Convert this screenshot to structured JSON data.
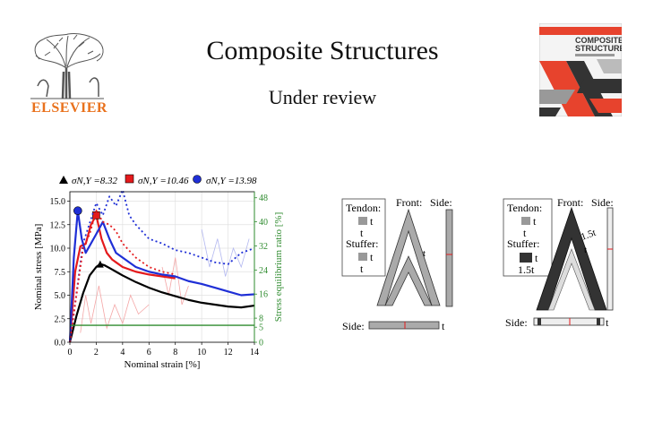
{
  "header": {
    "title": "Composite Structures",
    "subtitle": "Under review",
    "publisher_logo": "ELSEVIER",
    "journal_cover": {
      "line1": "COMPOSITE",
      "line2": "STRUCTURES"
    }
  },
  "colors": {
    "elsevier_orange": "#e9711c",
    "journal_red": "#e7432d",
    "series_black": "#000000",
    "series_red": "#e41a1c",
    "series_blue": "#1f2fd6",
    "equilibrium_green": "#2e8b2e"
  },
  "chart_data": {
    "type": "line",
    "xlabel": "Nominal strain [%]",
    "ylabel": "Nominal stress [MPa]",
    "y2label": "Stress equilibrium ratio [%]",
    "xlim": [
      0,
      14
    ],
    "ylim": [
      0,
      16
    ],
    "xticks": [
      "0",
      "2",
      "4",
      "6",
      "8",
      "10",
      "12",
      "14"
    ],
    "yticks": [
      "0.0",
      "2.5",
      "5.0",
      "7.5",
      "10.0",
      "12.5",
      "15.0"
    ],
    "y2ticks": [
      "0",
      "5",
      "8",
      "16",
      "24",
      "32",
      "40",
      "48"
    ],
    "grid": true,
    "legend_position": "top",
    "legend": [
      "σN,Y =8.32",
      "σN,Y =10.46",
      "σN,Y =13.98"
    ],
    "series": [
      {
        "name": "σN,Y =8.32",
        "color": "#000000",
        "marker": "triangle",
        "x": [
          0,
          0.5,
          1,
          1.5,
          2,
          2.3,
          2.6,
          3,
          3.5,
          4,
          5,
          6,
          7,
          8,
          9,
          10,
          11,
          12,
          13,
          14
        ],
        "y": [
          0,
          2.8,
          5.2,
          7.1,
          8.0,
          8.32,
          8.2,
          7.9,
          7.5,
          7.1,
          6.4,
          5.8,
          5.3,
          4.9,
          4.5,
          4.2,
          4.0,
          3.8,
          3.7,
          3.9
        ]
      },
      {
        "name": "σN,Y =10.46",
        "color": "#e41a1c",
        "marker": "square",
        "x": [
          0,
          0.4,
          0.8,
          1.2,
          1.6,
          2.0,
          2.4,
          2.8,
          3.2,
          3.6,
          4,
          5,
          6,
          7,
          8
        ],
        "y": [
          0,
          7.5,
          10.2,
          10.46,
          12.5,
          13.5,
          11.0,
          9.5,
          8.8,
          8.4,
          8.0,
          7.5,
          7.2,
          7.0,
          6.8
        ]
      },
      {
        "name": "σN,Y =13.98",
        "color": "#1f2fd6",
        "marker": "circle",
        "x": [
          0,
          0.3,
          0.6,
          0.9,
          1.2,
          1.6,
          2.0,
          2.5,
          3.0,
          3.5,
          4,
          5,
          6,
          7,
          8,
          9,
          10,
          11,
          12,
          13,
          14
        ],
        "y": [
          0,
          9.0,
          13.98,
          11.0,
          9.5,
          10.5,
          11.5,
          12.8,
          11.0,
          9.5,
          9.0,
          8.0,
          7.5,
          7.2,
          7.0,
          6.5,
          6.2,
          5.8,
          5.4,
          5.0,
          5.1
        ]
      },
      {
        "name": "",
        "color": "#1f2fd6",
        "style": "dotted",
        "x": [
          0,
          1,
          2,
          2.5,
          3,
          3.5,
          4,
          4.5,
          5,
          6,
          7,
          8,
          9,
          10,
          11,
          12,
          13,
          14
        ],
        "y": [
          0,
          10.5,
          14.8,
          13.5,
          15.5,
          14.5,
          16.2,
          13.5,
          12.5,
          11.0,
          10.5,
          9.8,
          9.5,
          9.0,
          8.5,
          8.3,
          9.5,
          10.0
        ]
      },
      {
        "name": "",
        "color": "#e41a1c",
        "style": "dotted",
        "x": [
          0,
          1,
          1.5,
          2,
          2.5,
          3,
          3.5,
          4,
          5,
          6,
          7,
          8
        ],
        "y": [
          0,
          10.0,
          11.5,
          14.0,
          12.8,
          12.5,
          11.8,
          10.5,
          9.0,
          8.0,
          7.5,
          7.2
        ]
      },
      {
        "name": "",
        "color": "#2e8b2e",
        "style": "solid",
        "axis": "y2",
        "x": [
          0,
          14
        ],
        "y": [
          1.8,
          1.8
        ]
      }
    ]
  },
  "diagrams": {
    "left": {
      "tendon_label": "Tendon:",
      "stuffer_label": "Stuffer:",
      "tendon_thickness": "t",
      "tendon_width": "t",
      "stuffer_thickness": "t",
      "stuffer_width": "t",
      "front_label": "Front:",
      "side_label": "Side:",
      "bottom_side_label": "Side:",
      "inner_t": "t",
      "bottom_t": "t"
    },
    "right": {
      "tendon_label": "Tendon:",
      "stuffer_label": "Stuffer:",
      "tendon_thickness": "t",
      "tendon_width": "t",
      "stuffer_thickness": "t",
      "stuffer_width": "1.5t",
      "front_label": "Front:",
      "side_label": "Side:",
      "bottom_side_label": "Side:",
      "front_dim": "1.5t",
      "inner_t": "t",
      "bottom_t": "t"
    }
  }
}
